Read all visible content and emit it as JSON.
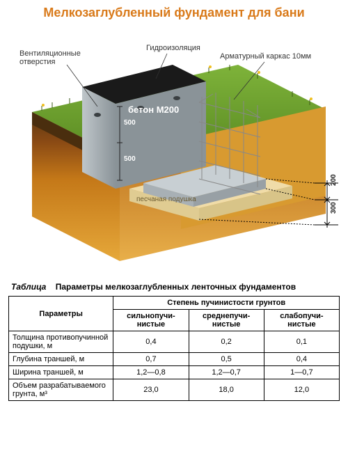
{
  "title": {
    "text": "Мелкозаглубленный фундамент для бани",
    "color": "#d97a1a",
    "fontsize": 18
  },
  "diagram": {
    "labels": {
      "vent_holes": "Вентиляционные\nотверстия",
      "waterproofing": "Гидроизоляция",
      "rebar_frame": "Арматурный каркас 10мм",
      "concrete": "бетон М200",
      "sand_cushion": "песчаная подушка"
    },
    "dimensions": {
      "wall_upper": "500",
      "wall_lower": "500",
      "depth_upper": "200",
      "depth_lower": "300"
    },
    "colors": {
      "grass": "#6b9b2e",
      "grass_dark": "#3d5a18",
      "topsoil": "#5a3812",
      "subsoil_upper": "#c47818",
      "subsoil_lower": "#e6a83a",
      "sand": "#e8c878",
      "concrete": "#9aa3a8",
      "concrete_dark": "#6f787d",
      "waterproof": "#1a1a1a",
      "rebar": "#888888",
      "flower": "#f0c020"
    }
  },
  "table": {
    "caption_word": "Таблица",
    "caption_title": "Параметры мелкозаглубленных ленточных фундаментов",
    "header_param": "Параметры",
    "header_group": "Степень пучинистости грунтов",
    "cols": [
      "сильнопучи-\nнистые",
      "среднепучи-\nнистые",
      "слабопучи-\nнистые"
    ],
    "rows": [
      {
        "param": "Толщина противопучинной подушки, м",
        "v": [
          "0,4",
          "0,2",
          "0,1"
        ]
      },
      {
        "param": "Глубина траншей, м",
        "v": [
          "0,7",
          "0,5",
          "0,4"
        ]
      },
      {
        "param": "Ширина траншей, м",
        "v": [
          "1,2—0,8",
          "1,2—0,7",
          "1—0,7"
        ]
      },
      {
        "param": "Объем разрабатываемого грунта, м³",
        "v": [
          "23,0",
          "18,0",
          "12,0"
        ]
      }
    ]
  }
}
